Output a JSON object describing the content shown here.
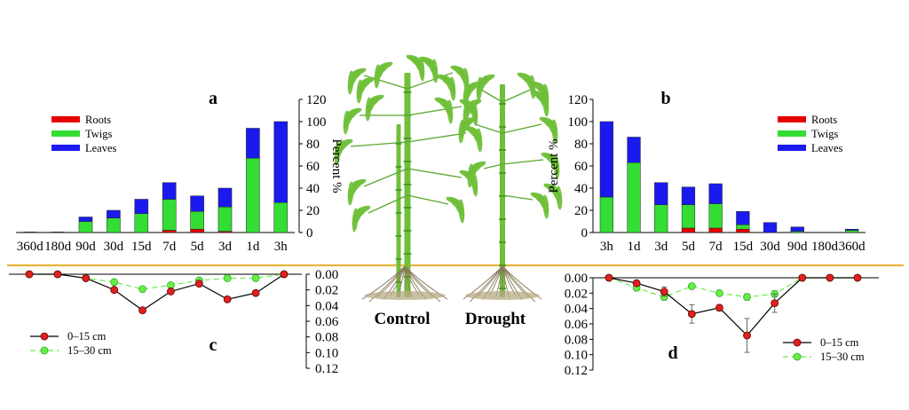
{
  "colors": {
    "roots": "#e60000",
    "twigs": "#33dd33",
    "leaves": "#1a1aee",
    "depth_0_15": "#e02020",
    "depth_15_30": "#66ee44",
    "soil_line": "#e8b43a",
    "bamboo": "#6fbf3a"
  },
  "illustration": {
    "control_label": "Control",
    "drought_label": "Drought",
    "icon": "bamboo-plant-illustration"
  },
  "chart_data": [
    {
      "id": "a",
      "panel_label": "a",
      "type": "bar",
      "stacked": true,
      "categories": [
        "360d",
        "180d",
        "90d",
        "30d",
        "15d",
        "7d",
        "5d",
        "3d",
        "1d",
        "3h"
      ],
      "tick_labels": [
        "360d",
        "180d",
        "90d",
        "30d",
        "15d",
        "7d",
        "5d",
        "3d",
        "1d",
        "3h"
      ],
      "series": [
        {
          "name": "Roots",
          "values": [
            0,
            0,
            0,
            0,
            0,
            2,
            3,
            1,
            0,
            0
          ]
        },
        {
          "name": "Twigs",
          "values": [
            0,
            0,
            10,
            13,
            17,
            28,
            16,
            22,
            67,
            27
          ]
        },
        {
          "name": "Leaves",
          "values": [
            0.5,
            0.5,
            4,
            7,
            13,
            15,
            14,
            17,
            27,
            73
          ]
        }
      ],
      "ylabel": "Percent %",
      "ylim": [
        0,
        120
      ],
      "yticks": [
        "0",
        "20",
        "40",
        "60",
        "80",
        "100",
        "120"
      ],
      "axis_side": "right",
      "legend": "top-left"
    },
    {
      "id": "b",
      "panel_label": "b",
      "type": "bar",
      "stacked": true,
      "categories": [
        "3h",
        "1d",
        "3d",
        "5d",
        "7d",
        "15d",
        "30d",
        "90d",
        "180d",
        "360d"
      ],
      "tick_labels": [
        "3h",
        "1d",
        "3d",
        "5d",
        "7d",
        "15d",
        "30d",
        "90d",
        "180d",
        "360d"
      ],
      "series": [
        {
          "name": "Roots",
          "values": [
            0,
            0,
            0,
            4,
            4,
            3,
            0,
            0,
            0,
            0
          ]
        },
        {
          "name": "Twigs",
          "values": [
            32,
            63,
            25,
            21,
            22,
            4,
            0,
            1,
            0,
            2
          ]
        },
        {
          "name": "Leaves",
          "values": [
            68,
            23,
            20,
            16,
            18,
            12,
            9,
            4,
            0,
            1
          ]
        }
      ],
      "ylabel": "Percent %",
      "ylim": [
        0,
        120
      ],
      "yticks": [
        "0",
        "20",
        "40",
        "60",
        "80",
        "100",
        "120"
      ],
      "axis_side": "left",
      "legend": "top-right"
    },
    {
      "id": "c",
      "panel_label": "c",
      "type": "line",
      "x_order": [
        "360d",
        "180d",
        "90d",
        "30d",
        "15d",
        "7d",
        "5d",
        "3d",
        "1d",
        "3h"
      ],
      "series": [
        {
          "name": "0–15 cm",
          "values": [
            0,
            0,
            0.005,
            0.02,
            0.046,
            0.022,
            0.012,
            0.032,
            0.024,
            0
          ]
        },
        {
          "name": "15–30 cm",
          "values": [
            0,
            0,
            0.005,
            0.01,
            0.019,
            0.014,
            0.008,
            0.005,
            0.005,
            0
          ]
        }
      ],
      "ylim": [
        0,
        0.12
      ],
      "yticks": [
        "0.00",
        "0.02",
        "0.04",
        "0.06",
        "0.08",
        "0.10",
        "0.12"
      ],
      "inverted_y": true,
      "axis_side": "right",
      "legend": "bottom-left"
    },
    {
      "id": "d",
      "panel_label": "d",
      "type": "line",
      "x_order": [
        "3h",
        "1d",
        "3d",
        "5d",
        "7d",
        "15d",
        "30d",
        "90d",
        "180d",
        "360d"
      ],
      "series": [
        {
          "name": "0–15 cm",
          "values": [
            0,
            0.007,
            0.018,
            0.047,
            0.039,
            0.075,
            0.033,
            0,
            0,
            0
          ],
          "errors": [
            0,
            0.002,
            0.006,
            0.012,
            0.004,
            0.022,
            0.012,
            0,
            0,
            0
          ]
        },
        {
          "name": "15–30 cm",
          "values": [
            0,
            0.013,
            0.025,
            0.011,
            0.02,
            0.025,
            0.021,
            0,
            0,
            0
          ],
          "errors": [
            0,
            0.002,
            0.004,
            0.002,
            0.003,
            0.004,
            0.004,
            0,
            0,
            0
          ]
        }
      ],
      "ylim": [
        0,
        0.12
      ],
      "yticks": [
        "0.00",
        "0.02",
        "0.04",
        "0.06",
        "0.08",
        "0.10",
        "0.12"
      ],
      "inverted_y": true,
      "axis_side": "left",
      "legend": "bottom-right"
    }
  ]
}
